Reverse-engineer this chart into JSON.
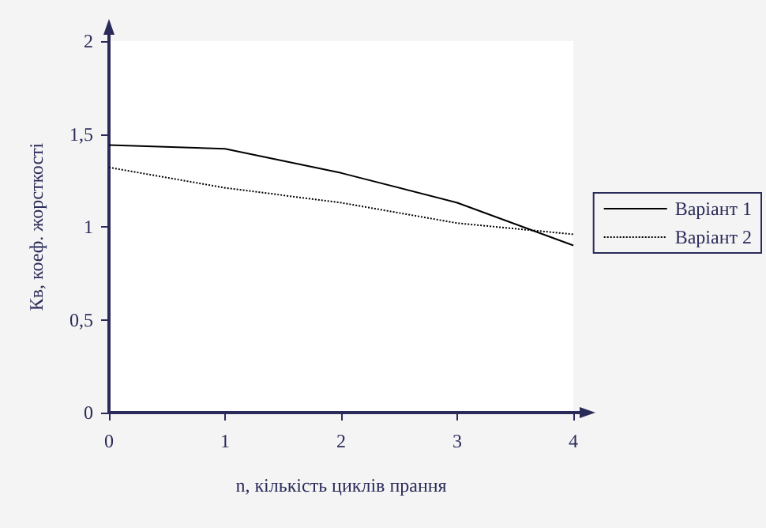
{
  "chart_data": {
    "type": "line",
    "xlabel": "n, кількість циклів прання",
    "ylabel": "Кв, коеф. жорсткості",
    "x": [
      0,
      1,
      2,
      3,
      4
    ],
    "series": [
      {
        "name": "Варіант 1",
        "color": "#000000",
        "values": [
          1.44,
          1.42,
          1.29,
          1.13,
          0.9
        ],
        "line_style": "solid"
      },
      {
        "name": "Варіант 2",
        "color": "#000000",
        "values": [
          1.32,
          1.21,
          1.13,
          1.02,
          0.96
        ],
        "line_style": "dotted"
      }
    ],
    "xlim": [
      0,
      4
    ],
    "xticks": [
      0,
      1,
      2,
      3,
      4
    ],
    "ylim": [
      0,
      2
    ],
    "yticks": [
      0,
      {
        "value": 0.5,
        "label": "0,5"
      },
      1,
      {
        "value": 1.5,
        "label": "1,5"
      },
      2
    ],
    "grid": false,
    "legend": "right",
    "marker": "none"
  }
}
